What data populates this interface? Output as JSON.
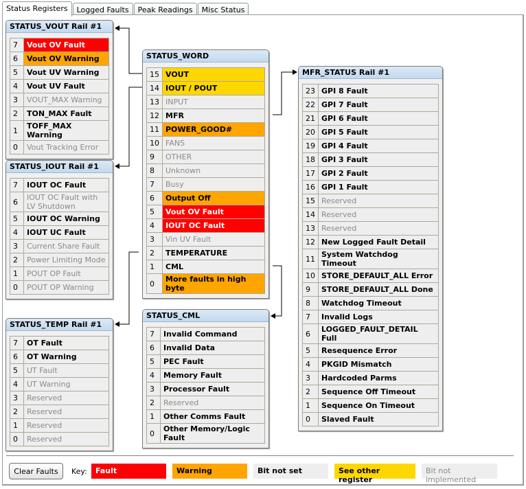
{
  "tabs": [
    {
      "label": "Status Registers",
      "active": true
    },
    {
      "label": "Logged Faults"
    },
    {
      "label": "Peak Readings"
    },
    {
      "label": "Misc Status"
    }
  ],
  "colors": {
    "fault": "#ff0000",
    "warning": "#ffa500",
    "not_set": "#eeeeee",
    "other": "#ffd700",
    "not_implemented": "#eeeeee"
  },
  "registers": {
    "vout": {
      "title": "STATUS_VOUT Rail #1",
      "rows": [
        [
          "7",
          "Vout OV Fault",
          "fault"
        ],
        [
          "6",
          "Vout OV Warning",
          "warn"
        ],
        [
          "5",
          "Vout UV Warning",
          "set"
        ],
        [
          "4",
          "Vout UV Fault",
          "set"
        ],
        [
          "3",
          "VOUT_MAX Warning",
          "ni"
        ],
        [
          "2",
          "TON_MAX Fault",
          "set"
        ],
        [
          "1",
          "TOFF_MAX Warning",
          "set"
        ],
        [
          "0",
          "Vout Tracking Error",
          "ni"
        ]
      ]
    },
    "iout": {
      "title": "STATUS_IOUT Rail #1",
      "rows": [
        [
          "7",
          "IOUT OC Fault",
          "set"
        ],
        [
          "6",
          "IOUT OC Fault with LV Shutdown",
          "ni"
        ],
        [
          "5",
          "IOUT OC Warning",
          "set"
        ],
        [
          "4",
          "IOUT UC Fault",
          "set"
        ],
        [
          "3",
          "Current Share Fault",
          "ni"
        ],
        [
          "2",
          "Power Limiting Mode",
          "ni"
        ],
        [
          "1",
          "POUT OP Fault",
          "ni"
        ],
        [
          "0",
          "POUT OP Warning",
          "ni"
        ]
      ]
    },
    "temp": {
      "title": "STATUS_TEMP Rail #1",
      "rows": [
        [
          "7",
          "OT Fault",
          "set"
        ],
        [
          "6",
          "OT Warning",
          "set"
        ],
        [
          "5",
          "UT Fault",
          "ni"
        ],
        [
          "4",
          "UT Warning",
          "ni"
        ],
        [
          "3",
          "Reserved",
          "ni"
        ],
        [
          "2",
          "Reserved",
          "ni"
        ],
        [
          "1",
          "Reserved",
          "ni"
        ],
        [
          "0",
          "Reserved",
          "ni"
        ]
      ]
    },
    "word": {
      "title": "STATUS_WORD",
      "rows": [
        [
          "15",
          "VOUT",
          "other"
        ],
        [
          "14",
          "IOUT / POUT",
          "other"
        ],
        [
          "13",
          "INPUT",
          "ni"
        ],
        [
          "12",
          "MFR",
          "set"
        ],
        [
          "11",
          "POWER_GOOD#",
          "warn"
        ],
        [
          "10",
          "FANS",
          "ni"
        ],
        [
          "9",
          "OTHER",
          "ni"
        ],
        [
          "8",
          "Unknown",
          "ni"
        ],
        [
          "7",
          "Busy",
          "ni"
        ],
        [
          "6",
          "Output Off",
          "warn"
        ],
        [
          "5",
          "Vout OV Fault",
          "fault"
        ],
        [
          "4",
          "IOUT OC Fault",
          "fault"
        ],
        [
          "3",
          "Vin UV Fault",
          "ni"
        ],
        [
          "2",
          "TEMPERATURE",
          "set"
        ],
        [
          "1",
          "CML",
          "set"
        ],
        [
          "0",
          "More faults in high byte",
          "warn"
        ]
      ]
    },
    "cml": {
      "title": "STATUS_CML",
      "rows": [
        [
          "7",
          "Invalid Command",
          "set"
        ],
        [
          "6",
          "Invalid Data",
          "set"
        ],
        [
          "5",
          "PEC Fault",
          "set"
        ],
        [
          "4",
          "Memory Fault",
          "set"
        ],
        [
          "3",
          "Processor Fault",
          "set"
        ],
        [
          "2",
          "Reserved",
          "ni"
        ],
        [
          "1",
          "Other Comms Fault",
          "set"
        ],
        [
          "0",
          "Other Memory/Logic Fault",
          "set"
        ]
      ]
    },
    "mfr": {
      "title": "MFR_STATUS Rail #1",
      "rows": [
        [
          "23",
          "GPI 8 Fault",
          "set"
        ],
        [
          "22",
          "GPI 7 Fault",
          "set"
        ],
        [
          "21",
          "GPI 6 Fault",
          "set"
        ],
        [
          "20",
          "GPI 5 Fault",
          "set"
        ],
        [
          "19",
          "GPI 4 Fault",
          "set"
        ],
        [
          "18",
          "GPI 3 Fault",
          "set"
        ],
        [
          "17",
          "GPI 2 Fault",
          "set"
        ],
        [
          "16",
          "GPI 1 Fault",
          "set"
        ],
        [
          "15",
          "Reserved",
          "ni"
        ],
        [
          "14",
          "Reserved",
          "ni"
        ],
        [
          "13",
          "Reserved",
          "ni"
        ],
        [
          "12",
          "New Logged Fault Detail",
          "set"
        ],
        [
          "11",
          "System Watchdog Timeout",
          "set"
        ],
        [
          "10",
          "STORE_DEFAULT_ALL Error",
          "set"
        ],
        [
          "9",
          "STORE_DEFAULT_ALL Done",
          "set"
        ],
        [
          "8",
          "Watchdog Timeout",
          "set"
        ],
        [
          "7",
          "Invalid Logs",
          "set"
        ],
        [
          "6",
          "LOGGED_FAULT_DETAIL Full",
          "set"
        ],
        [
          "5",
          "Resequence Error",
          "set"
        ],
        [
          "4",
          "PKGID Mismatch",
          "set"
        ],
        [
          "3",
          "Hardcoded Parms",
          "set"
        ],
        [
          "2",
          "Sequence Off Timeout",
          "set"
        ],
        [
          "1",
          "Sequence On Timeout",
          "set"
        ],
        [
          "0",
          "Slaved Fault",
          "set"
        ]
      ]
    }
  },
  "footer": {
    "clear_button": "Clear Faults",
    "key_label": "Key:",
    "keys": {
      "fault": "Fault",
      "warning": "Warning",
      "not_set": "Bit not set",
      "other": "See other register",
      "not_implemented": "Bit not implemented"
    }
  }
}
